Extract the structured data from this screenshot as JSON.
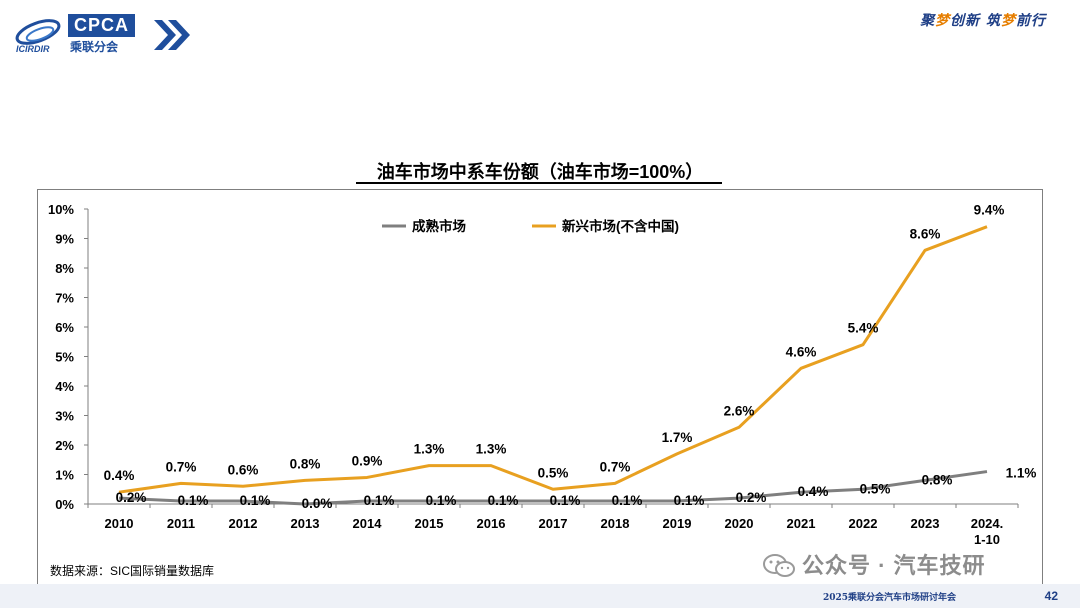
{
  "header": {
    "logo_text": "CPCA",
    "logo_cn": "乘联分会",
    "slogan_parts": [
      "聚",
      "梦",
      "创新 筑",
      "梦",
      "前行"
    ]
  },
  "footer": {
    "source": "数据来源：SIC国际销量数据库",
    "watermark": "公众号 · 汽车技研",
    "event_text": "2025乘联分会汽车市场研讨年会",
    "page_number": "42"
  },
  "colors": {
    "mature": "#7f7f7f",
    "emerging": "#e8a020",
    "header_blue": "#1f4e9c"
  },
  "chart_data": {
    "type": "line",
    "title": "油车市场中系车份额（油车市场=100%）",
    "categories": [
      "2010",
      "2011",
      "2012",
      "2013",
      "2014",
      "2015",
      "2016",
      "2017",
      "2018",
      "2019",
      "2020",
      "2021",
      "2022",
      "2023",
      "2024.\n1-10"
    ],
    "y_ticks": [
      "0%",
      "1%",
      "2%",
      "3%",
      "4%",
      "5%",
      "6%",
      "7%",
      "8%",
      "9%",
      "10%"
    ],
    "ylim": [
      0,
      10
    ],
    "legend_position": "top",
    "grid": false,
    "series": [
      {
        "name": "成熟市场",
        "color": "#7f7f7f",
        "values": [
          0.2,
          0.1,
          0.1,
          0.0,
          0.1,
          0.1,
          0.1,
          0.1,
          0.1,
          0.1,
          0.2,
          0.4,
          0.5,
          0.8,
          1.1
        ],
        "labels": [
          "0.2%",
          "0.1%",
          "0.1%",
          "0.0%",
          "0.1%",
          "0.1%",
          "0.1%",
          "0.1%",
          "0.1%",
          "0.1%",
          "0.2%",
          "0.4%",
          "0.5%",
          "0.8%",
          "1.1%"
        ]
      },
      {
        "name": "新兴市场(不含中国)",
        "color": "#e8a020",
        "values": [
          0.4,
          0.7,
          0.6,
          0.8,
          0.9,
          1.3,
          1.3,
          0.5,
          0.7,
          1.7,
          2.6,
          4.6,
          5.4,
          8.6,
          9.4
        ],
        "labels": [
          "0.4%",
          "0.7%",
          "0.6%",
          "0.8%",
          "0.9%",
          "1.3%",
          "1.3%",
          "0.5%",
          "0.7%",
          "1.7%",
          "2.6%",
          "4.6%",
          "5.4%",
          "8.6%",
          "9.4%"
        ]
      }
    ]
  }
}
